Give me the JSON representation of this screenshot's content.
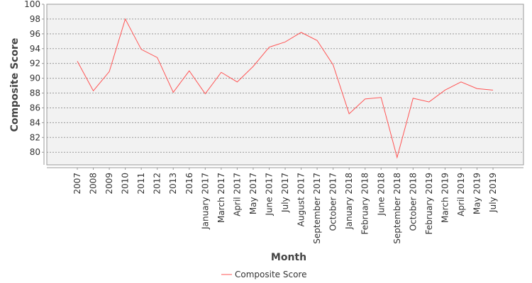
{
  "chart_data": {
    "type": "line",
    "x_label": "Month",
    "y_label": "Composite Score",
    "categories": [
      "2007",
      "2008",
      "2009",
      "2010",
      "2011",
      "2012",
      "2013",
      "2016",
      "January 2017",
      "March 2017",
      "April 2017",
      "May 2017",
      "June 2017",
      "July 2017",
      "August 2017",
      "September 2017",
      "October 2017",
      "January 2018",
      "February 2018",
      "June 2018",
      "September 2018",
      "October 2018",
      "February 2019",
      "March 2019",
      "April 2019",
      "May 2019",
      "July 2019"
    ],
    "series": [
      {
        "name": "Composite Score",
        "color": "#ff5555",
        "values": [
          92.3,
          88.3,
          90.9,
          98.0,
          93.9,
          92.8,
          88.1,
          91.0,
          87.9,
          90.8,
          89.5,
          91.6,
          94.2,
          94.9,
          96.2,
          95.1,
          91.8,
          85.2,
          87.2,
          87.4,
          79.3,
          87.3,
          86.8,
          88.4,
          89.5,
          88.6,
          88.4
        ]
      }
    ],
    "ylim": [
      78.3,
      100
    ],
    "yticks": [
      80,
      82,
      84,
      86,
      88,
      90,
      92,
      94,
      96,
      98,
      100
    ],
    "grid": true
  }
}
